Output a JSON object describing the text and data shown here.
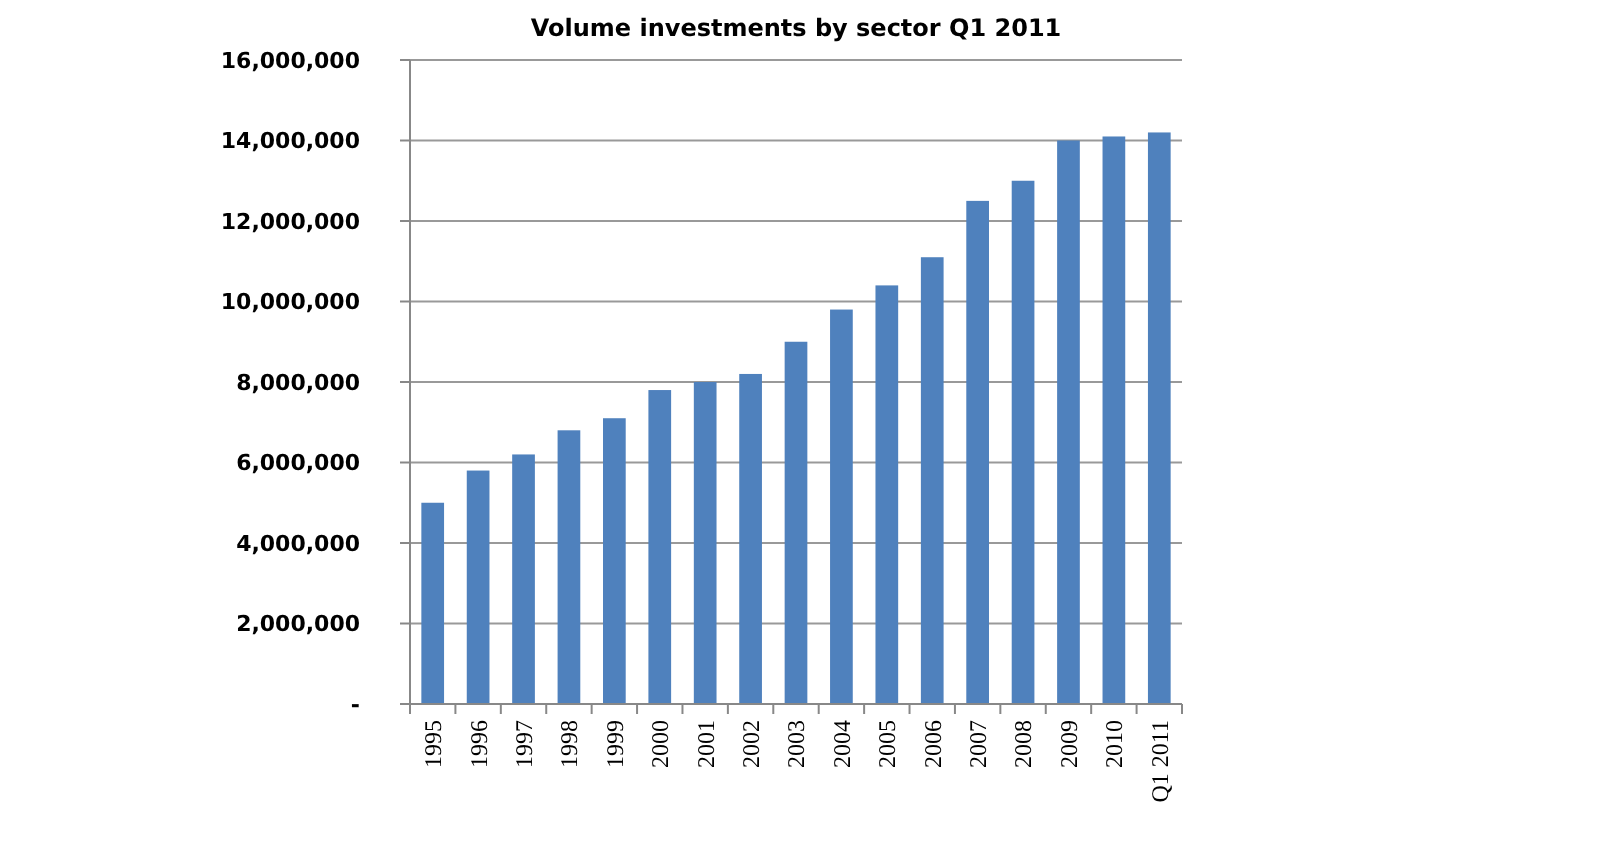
{
  "chart_data": {
    "type": "bar",
    "title": "Volume investments by sector Q1 2011",
    "categories": [
      "1995",
      "1996",
      "1997",
      "1998",
      "1999",
      "2000",
      "2001",
      "2002",
      "2003",
      "2004",
      "2005",
      "2006",
      "2007",
      "2008",
      "2009",
      "2010",
      "Q1 2011"
    ],
    "values": [
      5000000,
      5800000,
      6200000,
      6800000,
      7100000,
      7800000,
      8000000,
      8200000,
      9000000,
      9800000,
      10400000,
      11100000,
      12500000,
      13000000,
      14000000,
      14100000,
      14200000
    ],
    "color": "#4f81bd",
    "ylim": [
      0,
      16000000
    ],
    "yticks": [
      {
        "value": 0,
        "label": "-"
      },
      {
        "value": 2000000,
        "label": "2,000,000"
      },
      {
        "value": 4000000,
        "label": "4,000,000"
      },
      {
        "value": 6000000,
        "label": "6,000,000"
      },
      {
        "value": 8000000,
        "label": "8,000,000"
      },
      {
        "value": 10000000,
        "label": "10,000,000"
      },
      {
        "value": 12000000,
        "label": "12,000,000"
      },
      {
        "value": 14000000,
        "label": "14,000,000"
      },
      {
        "value": 16000000,
        "label": "16,000,000"
      }
    ],
    "grid": "y"
  }
}
